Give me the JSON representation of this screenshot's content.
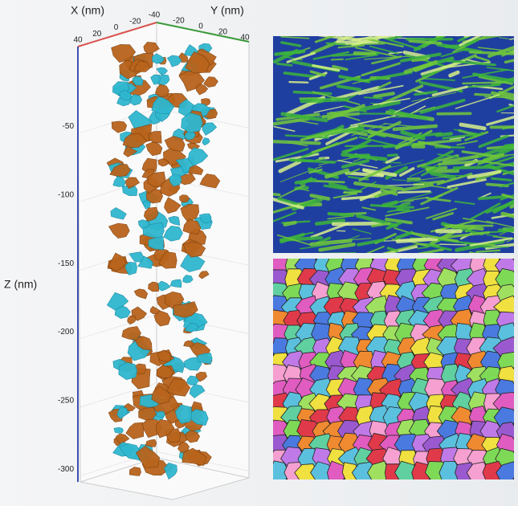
{
  "figure": {
    "x_axis": {
      "label": "X (nm)",
      "ticks": [
        40,
        20,
        0,
        -20,
        -40
      ]
    },
    "y_axis": {
      "label": "Y (nm)",
      "ticks": [
        -20,
        0,
        20,
        40
      ]
    },
    "z_axis": {
      "label": "Z (nm)",
      "ticks": [
        -50,
        -100,
        -150,
        -200,
        -250,
        -300
      ]
    }
  }
}
